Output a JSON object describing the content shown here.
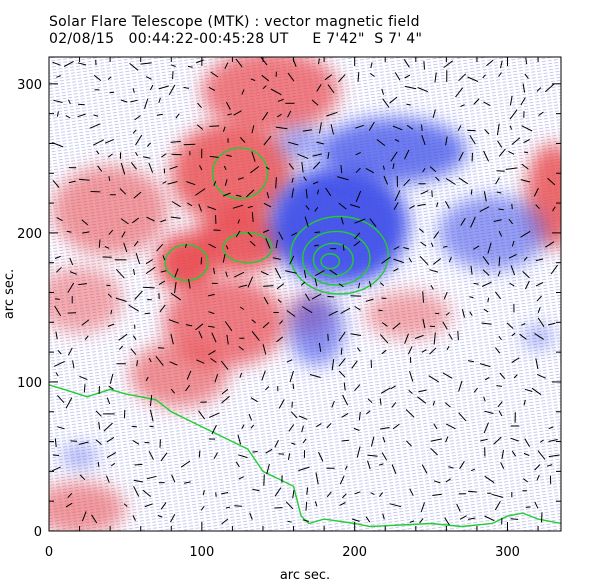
{
  "title": "Solar Flare Telescope (MTK) : vector magnetic field",
  "subtitle": "02/08/15   00:44:22-00:45:28 UT     E 7'42\"  S 7' 4\"",
  "chart_data": {
    "type": "heatmap",
    "xlabel": "arc sec.",
    "ylabel": "arc sec.",
    "xlim": [
      0,
      335
    ],
    "ylim": [
      0,
      318
    ],
    "x_ticks": [
      "0",
      "100",
      "200",
      "300"
    ],
    "y_ticks": [
      "0",
      "100",
      "200",
      "300"
    ],
    "colors": {
      "positive": "#e8474b",
      "negative": "#3f4fe8",
      "contour": "#22cc33",
      "vectors": "#000000"
    },
    "positive_regions": [
      {
        "x": 145,
        "y": 295,
        "rx": 45,
        "ry": 28,
        "s": 0.7
      },
      {
        "x": 120,
        "y": 240,
        "rx": 40,
        "ry": 35,
        "s": 0.8
      },
      {
        "x": 40,
        "y": 215,
        "rx": 38,
        "ry": 30,
        "s": 0.55
      },
      {
        "x": 90,
        "y": 180,
        "rx": 20,
        "ry": 20,
        "s": 0.9
      },
      {
        "x": 125,
        "y": 195,
        "rx": 30,
        "ry": 22,
        "s": 0.85
      },
      {
        "x": 115,
        "y": 140,
        "rx": 40,
        "ry": 30,
        "s": 0.7
      },
      {
        "x": 85,
        "y": 105,
        "rx": 32,
        "ry": 22,
        "s": 0.6
      },
      {
        "x": 20,
        "y": 155,
        "rx": 28,
        "ry": 22,
        "s": 0.45
      },
      {
        "x": 235,
        "y": 145,
        "rx": 28,
        "ry": 16,
        "s": 0.45
      },
      {
        "x": 330,
        "y": 225,
        "rx": 18,
        "ry": 35,
        "s": 0.8
      },
      {
        "x": 20,
        "y": 15,
        "rx": 30,
        "ry": 18,
        "s": 0.55
      },
      {
        "x": 170,
        "y": 145,
        "rx": 14,
        "ry": 14,
        "s": 0.5
      }
    ],
    "negative_regions": [
      {
        "x": 190,
        "y": 205,
        "rx": 45,
        "ry": 40,
        "s": 0.95
      },
      {
        "x": 225,
        "y": 255,
        "rx": 48,
        "ry": 22,
        "s": 0.75
      },
      {
        "x": 290,
        "y": 200,
        "rx": 35,
        "ry": 25,
        "s": 0.55
      },
      {
        "x": 175,
        "y": 135,
        "rx": 18,
        "ry": 24,
        "s": 0.6
      },
      {
        "x": 165,
        "y": 260,
        "rx": 15,
        "ry": 12,
        "s": 0.45
      },
      {
        "x": 320,
        "y": 130,
        "rx": 10,
        "ry": 8,
        "s": 0.4
      },
      {
        "x": 20,
        "y": 50,
        "rx": 12,
        "ry": 8,
        "s": 0.4
      }
    ],
    "contours": [
      {
        "x": 190,
        "y": 185,
        "rx": 32,
        "ry": 26
      },
      {
        "x": 188,
        "y": 183,
        "rx": 22,
        "ry": 18
      },
      {
        "x": 186,
        "y": 182,
        "rx": 13,
        "ry": 11
      },
      {
        "x": 184,
        "y": 181,
        "rx": 6,
        "ry": 5
      },
      {
        "x": 125,
        "y": 240,
        "rx": 18,
        "ry": 17
      },
      {
        "x": 90,
        "y": 180,
        "rx": 14,
        "ry": 12
      },
      {
        "x": 130,
        "y": 190,
        "rx": 16,
        "ry": 10
      }
    ],
    "limb_contour": {
      "x": [
        0,
        10,
        25,
        40,
        50,
        60,
        70,
        80,
        100,
        120,
        130,
        140,
        150,
        160,
        165,
        170,
        180,
        200,
        210,
        230,
        250,
        270,
        290,
        300,
        310,
        320,
        335
      ],
      "y": [
        98,
        95,
        90,
        95,
        92,
        90,
        88,
        80,
        70,
        60,
        55,
        40,
        35,
        30,
        10,
        5,
        8,
        5,
        3,
        4,
        5,
        3,
        5,
        10,
        12,
        8,
        5
      ]
    }
  }
}
